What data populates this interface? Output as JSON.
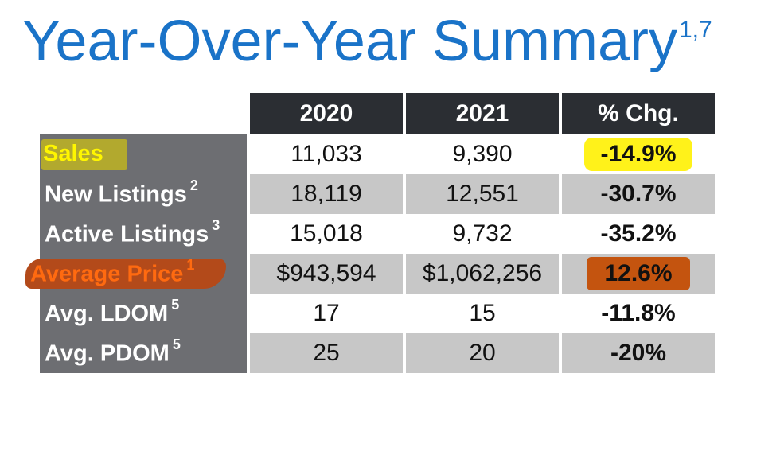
{
  "title": {
    "text": "Year-Over-Year Summary",
    "footnotes": "1,7"
  },
  "table": {
    "headers": [
      "2020",
      "2021",
      "% Chg."
    ],
    "rows": [
      {
        "label": "Sales",
        "note": "",
        "y2020": "11,033",
        "y2021": "9,390",
        "chg": "-14.9%"
      },
      {
        "label": "New Listings",
        "note": "2",
        "y2020": "18,119",
        "y2021": "12,551",
        "chg": "-30.7%"
      },
      {
        "label": "Active Listings",
        "note": "3",
        "y2020": "15,018",
        "y2021": "9,732",
        "chg": "-35.2%"
      },
      {
        "label": "Average Price",
        "note": "1",
        "y2020": "$943,594",
        "y2021": "$1,062,256",
        "chg": "12.6%"
      },
      {
        "label": "Avg. LDOM",
        "note": "5",
        "y2020": "17",
        "y2021": "15",
        "chg": "-11.8%"
      },
      {
        "label": "Avg. PDOM",
        "note": "5",
        "y2020": "25",
        "y2021": "20",
        "chg": "-20%"
      }
    ]
  },
  "highlights": {
    "yellow": "#fff21a",
    "orange": "#c4540f",
    "title_blue": "#1a73c8",
    "header_dark": "#2b2e33",
    "label_gray": "#6d6e72"
  }
}
